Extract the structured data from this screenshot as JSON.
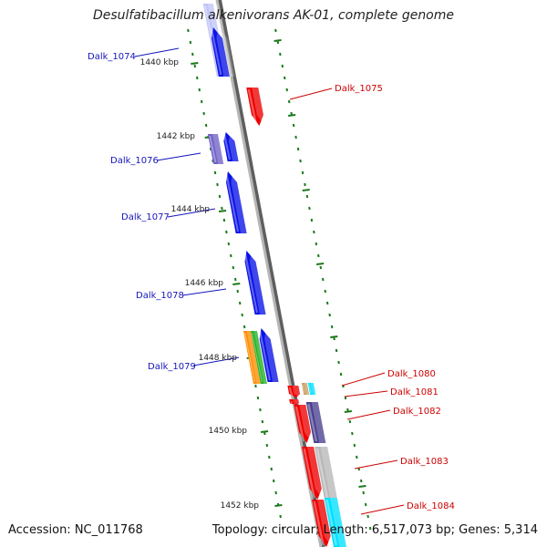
{
  "title": "Desulfatibacillum alkenivorans AK-01, complete genome",
  "footer": {
    "accession": "Accession: NC_011768",
    "summary": "Topology: circular; Length: 6,517,073 bp; Genes: 5,314"
  },
  "colors": {
    "backbone": "#8a8a8a",
    "tick": "#1a7a1a",
    "left_label": "#1515bb",
    "right_label": "#cc0000",
    "blue": "#0a12e6",
    "red": "#ee0000",
    "purple": "#7060c8",
    "dark_purple": "#4a4090",
    "orange": "#ff8c00",
    "green": "#22b022",
    "tan": "#c8a060",
    "cyan": "#00e0ff",
    "gray": "#b8b8b8",
    "light": "#c0c4f8"
  },
  "scale": [
    {
      "label": "1440 kbp",
      "kbp": 1440
    },
    {
      "label": "1442 kbp",
      "kbp": 1442
    },
    {
      "label": "1444 kbp",
      "kbp": 1444
    },
    {
      "label": "1446 kbp",
      "kbp": 1446
    },
    {
      "label": "1448 kbp",
      "kbp": 1448
    },
    {
      "label": "1450 kbp",
      "kbp": 1450
    },
    {
      "label": "1452 kbp",
      "kbp": 1452
    }
  ],
  "gene_labels": {
    "left": [
      "Dalk_1074",
      "Dalk_1076",
      "Dalk_1077",
      "Dalk_1078",
      "Dalk_1079"
    ],
    "right": [
      "Dalk_1075",
      "Dalk_1080",
      "Dalk_1081",
      "Dalk_1082",
      "Dalk_1083",
      "Dalk_1084"
    ]
  }
}
